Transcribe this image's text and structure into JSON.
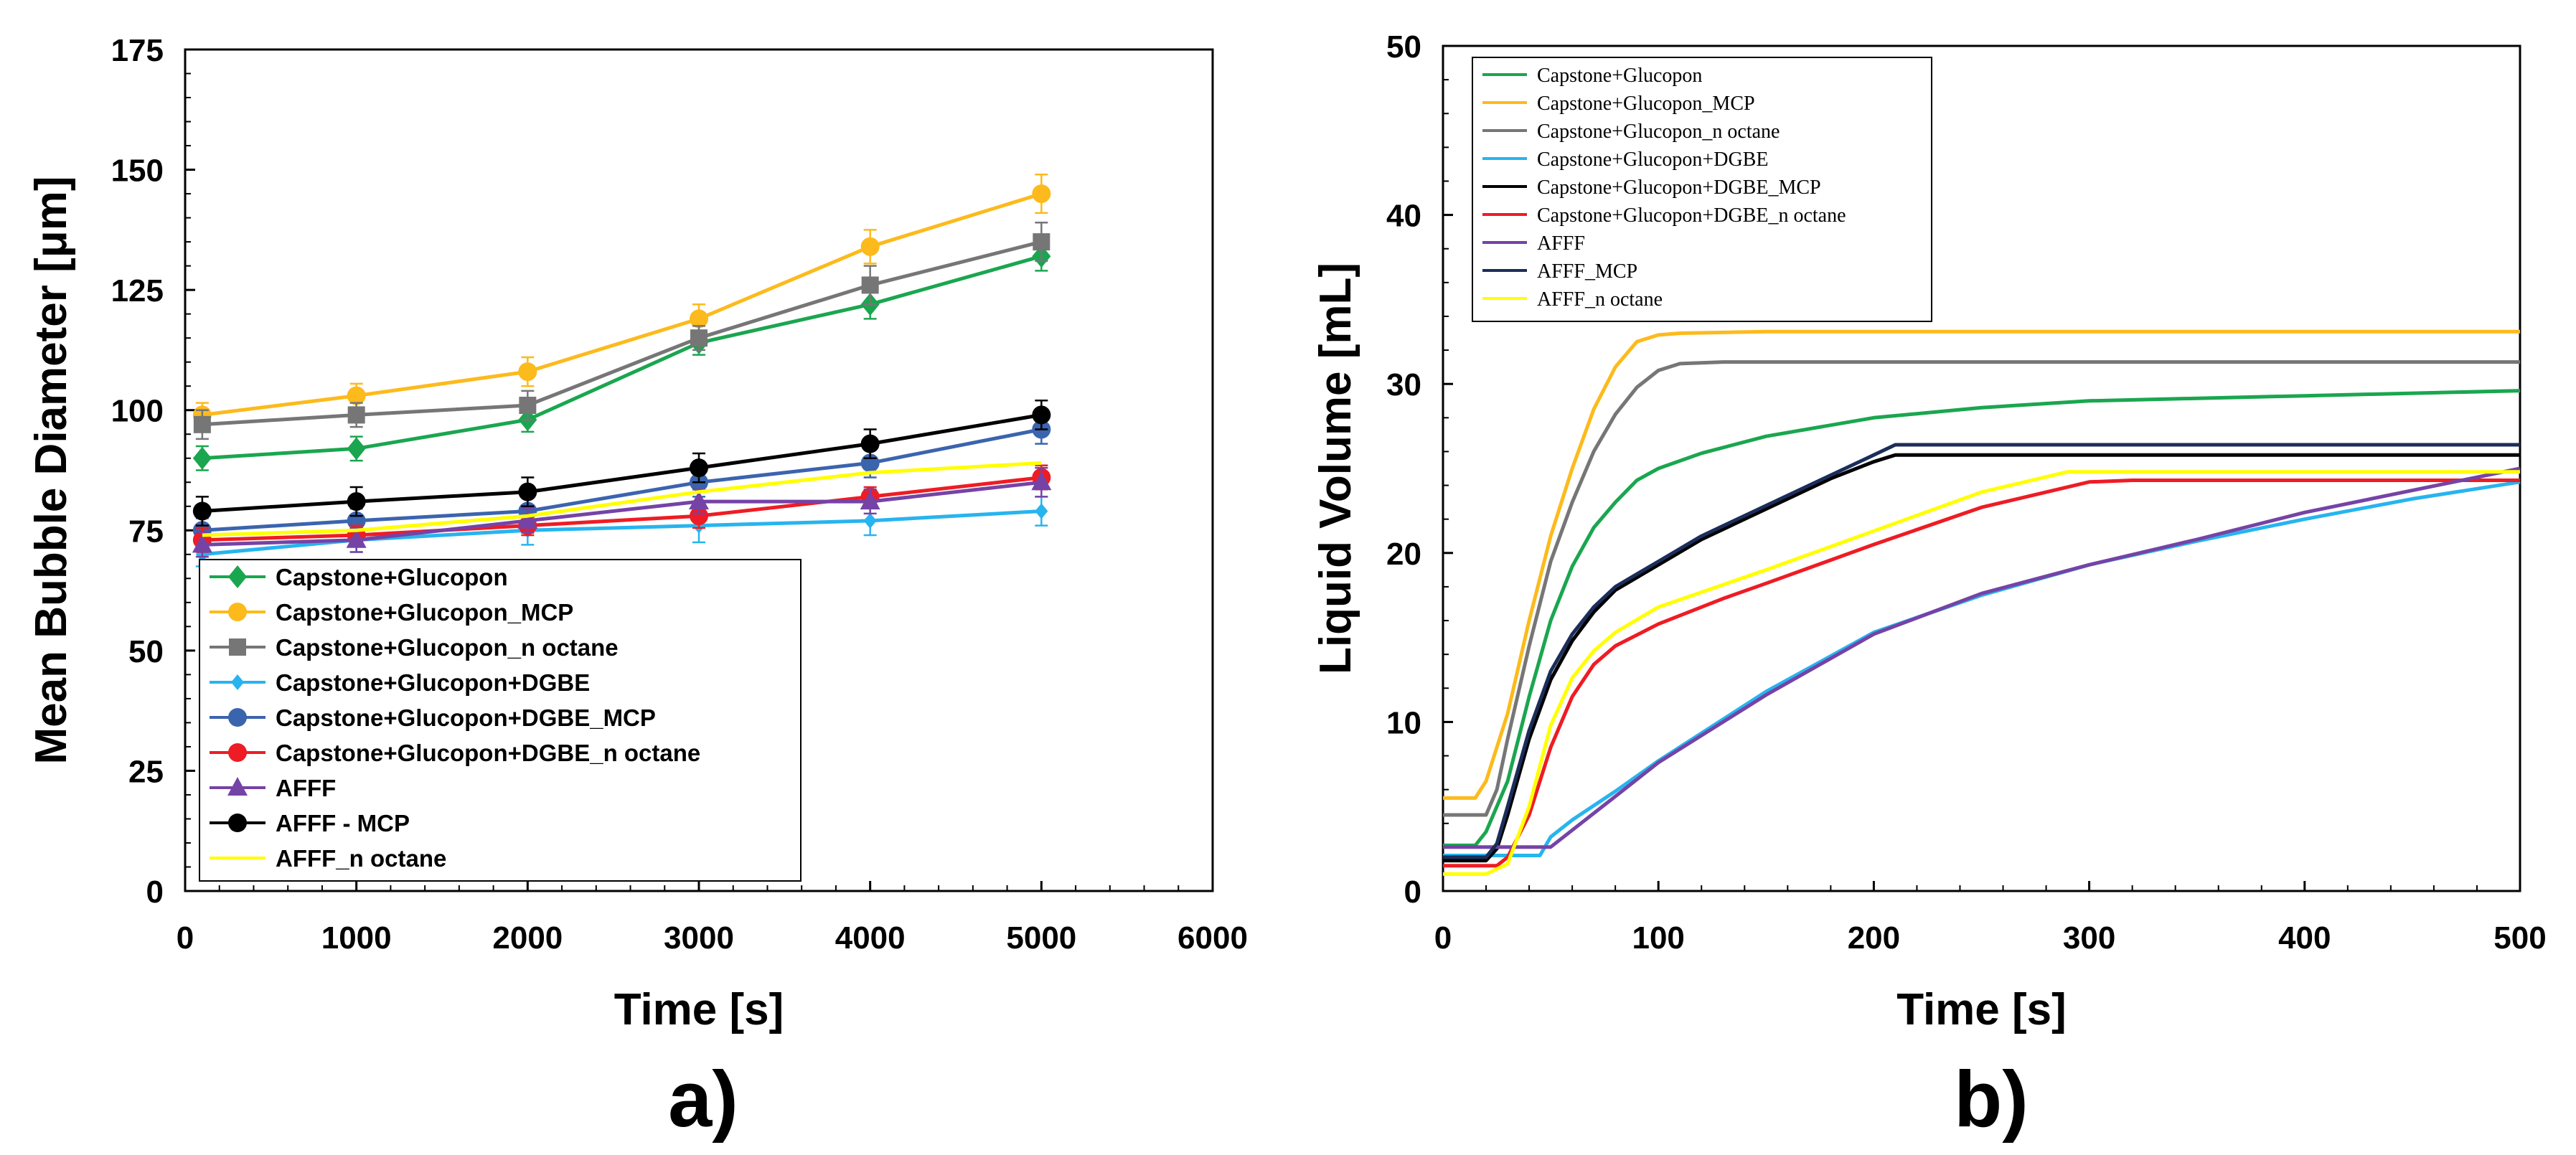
{
  "chart_data": [
    {
      "panel": "a)",
      "type": "line",
      "xlabel": "Time [s]",
      "ylabel": "Mean Bubble Diameter [μm]",
      "xlim": [
        0,
        6000
      ],
      "ylim": [
        0,
        175
      ],
      "xticks": [
        0,
        1000,
        2000,
        3000,
        4000,
        5000,
        6000
      ],
      "yticks": [
        0,
        25,
        50,
        75,
        100,
        125,
        150,
        175
      ],
      "x": [
        100,
        1000,
        2000,
        3000,
        4000,
        5000
      ],
      "legend_position": "bottom-left",
      "series": [
        {
          "name": "Capstone+Glucopon",
          "color": "#1aa64f",
          "marker": "diamond",
          "values": [
            90,
            92,
            98,
            114,
            122,
            132
          ],
          "errors": [
            2.5,
            2.5,
            2.5,
            2.5,
            3,
            3
          ]
        },
        {
          "name": "Capstone+Glucopon_MCP",
          "color": "#fcba1c",
          "marker": "circle",
          "values": [
            99,
            103,
            108,
            119,
            134,
            145
          ],
          "errors": [
            2.5,
            2.5,
            3,
            3,
            3.5,
            4
          ]
        },
        {
          "name": "Capstone+Glucopon_n octane",
          "color": "#767676",
          "marker": "square",
          "values": [
            97,
            99,
            101,
            115,
            126,
            135
          ],
          "errors": [
            3,
            2.5,
            3,
            2.5,
            4,
            4
          ]
        },
        {
          "name": "Capstone+Glucopon+DGBE",
          "color": "#27b4ef",
          "marker": "diamond-small",
          "values": [
            70,
            73,
            75,
            76,
            77,
            79
          ],
          "errors": [
            2.5,
            2.5,
            3,
            3.5,
            3,
            3
          ]
        },
        {
          "name": "Capstone+Glucopon+DGBE_MCP",
          "color": "#3b64ae",
          "marker": "circle",
          "values": [
            75,
            77,
            79,
            85,
            89,
            96
          ],
          "errors": [
            2.5,
            2.5,
            3,
            3,
            3,
            3
          ]
        },
        {
          "name": "Capstone+Glucopon+DGBE_n octane",
          "color": "#ee1c24",
          "marker": "circle",
          "values": [
            73,
            74,
            76,
            78,
            82,
            86
          ],
          "errors": [
            2.5,
            2,
            2,
            2.5,
            2,
            2.5
          ]
        },
        {
          "name": "AFFF",
          "color": "#7543a6",
          "marker": "triangle",
          "values": [
            72,
            73,
            77,
            81,
            81,
            85
          ],
          "errors": [
            2.5,
            2.5,
            2.5,
            2.5,
            2.5,
            3
          ]
        },
        {
          "name": "AFFF - MCP",
          "color": "#000000",
          "marker": "circle",
          "values": [
            79,
            81,
            83,
            88,
            93,
            99
          ],
          "errors": [
            3,
            3,
            3,
            3,
            3,
            3
          ]
        },
        {
          "name": "AFFF_n octane",
          "color": "#ffff00",
          "marker": "none",
          "values": [
            74,
            75,
            78,
            83,
            87,
            89
          ],
          "errors": [
            0,
            0,
            0,
            0,
            0,
            0
          ]
        }
      ]
    },
    {
      "panel": "b)",
      "type": "line",
      "xlabel": "Time [s]",
      "ylabel": "Liquid Volume [mL]",
      "xlim": [
        0,
        500
      ],
      "ylim": [
        0,
        50
      ],
      "xticks": [
        0,
        100,
        200,
        300,
        400,
        500
      ],
      "yticks": [
        0,
        10,
        20,
        30,
        40,
        50
      ],
      "legend_position": "top-left",
      "series": [
        {
          "name": "Capstone+Glucopon",
          "color": "#1aa64f",
          "x": [
            0,
            15,
            20,
            30,
            40,
            50,
            60,
            70,
            80,
            90,
            100,
            120,
            150,
            200,
            250,
            300,
            400,
            500
          ],
          "values": [
            2.7,
            2.7,
            3.5,
            6.5,
            11.5,
            16,
            19.2,
            21.5,
            23,
            24.3,
            25,
            25.9,
            26.9,
            28,
            28.6,
            29,
            29.3,
            29.6
          ]
        },
        {
          "name": "Capstone+Glucopon_MCP",
          "color": "#fcba1c",
          "x": [
            0,
            15,
            20,
            30,
            40,
            50,
            60,
            70,
            80,
            90,
            100,
            110,
            150,
            200,
            300,
            400,
            500
          ],
          "values": [
            5.5,
            5.5,
            6.5,
            10.5,
            16,
            21,
            25,
            28.5,
            31,
            32.5,
            32.9,
            33,
            33.1,
            33.1,
            33.1,
            33.1,
            33.1
          ]
        },
        {
          "name": "Capstone+Glucopon_n octane",
          "color": "#767676",
          "x": [
            0,
            20,
            25,
            30,
            40,
            50,
            60,
            70,
            80,
            90,
            100,
            110,
            130,
            200,
            300,
            400,
            500
          ],
          "values": [
            4.5,
            4.5,
            6,
            9,
            14.5,
            19.5,
            23,
            26,
            28.2,
            29.8,
            30.8,
            31.2,
            31.3,
            31.3,
            31.3,
            31.3,
            31.3
          ]
        },
        {
          "name": "Capstone+Glucopon+DGBE",
          "color": "#27b4ef",
          "x": [
            0,
            45,
            50,
            60,
            80,
            100,
            150,
            200,
            250,
            300,
            350,
            400,
            450,
            500
          ],
          "values": [
            2.1,
            2.1,
            3.2,
            4.2,
            5.9,
            7.7,
            11.8,
            15.3,
            17.5,
            19.3,
            20.7,
            22,
            23.2,
            24.2
          ]
        },
        {
          "name": "Capstone+Glucopon+DGBE_MCP",
          "color": "#000000",
          "x": [
            0,
            20,
            25,
            30,
            40,
            50,
            60,
            70,
            80,
            100,
            120,
            150,
            180,
            200,
            210,
            300,
            400,
            500
          ],
          "values": [
            1.8,
            1.8,
            2.5,
            4.5,
            9,
            12.5,
            14.8,
            16.5,
            17.8,
            19.3,
            20.8,
            22.6,
            24.4,
            25.4,
            25.8,
            25.8,
            25.8,
            25.8
          ]
        },
        {
          "name": "Capstone+Glucopon+DGBE_n octane",
          "color": "#ee1c24",
          "x": [
            0,
            25,
            30,
            40,
            50,
            60,
            70,
            80,
            100,
            130,
            150,
            200,
            250,
            300,
            320,
            400,
            500
          ],
          "values": [
            1.5,
            1.5,
            2,
            4.5,
            8.5,
            11.5,
            13.4,
            14.5,
            15.8,
            17.3,
            18.2,
            20.5,
            22.7,
            24.2,
            24.3,
            24.3,
            24.3
          ]
        },
        {
          "name": "AFFF",
          "color": "#7543a6",
          "x": [
            0,
            50,
            60,
            80,
            100,
            150,
            200,
            250,
            300,
            350,
            400,
            450,
            500
          ],
          "values": [
            2.6,
            2.6,
            3.6,
            5.6,
            7.6,
            11.6,
            15.2,
            17.6,
            19.3,
            20.8,
            22.4,
            23.7,
            25
          ]
        },
        {
          "name": "AFFF_MCP",
          "color": "#1b2d5a",
          "x": [
            0,
            20,
            25,
            30,
            40,
            50,
            60,
            70,
            80,
            100,
            120,
            150,
            180,
            200,
            210,
            300,
            400,
            500
          ],
          "values": [
            2,
            2,
            2.8,
            5,
            9.5,
            13,
            15.2,
            16.8,
            18,
            19.5,
            21,
            22.8,
            24.6,
            25.8,
            26.4,
            26.4,
            26.4,
            26.4
          ]
        },
        {
          "name": "AFFF_n octane",
          "color": "#ffff00",
          "x": [
            0,
            20,
            30,
            40,
            50,
            60,
            70,
            80,
            100,
            150,
            200,
            250,
            290,
            300,
            400,
            500
          ],
          "values": [
            1,
            1,
            1.6,
            5,
            9.8,
            12.6,
            14.2,
            15.3,
            16.8,
            19,
            21.3,
            23.6,
            24.8,
            24.8,
            24.8,
            24.8
          ]
        }
      ]
    }
  ]
}
